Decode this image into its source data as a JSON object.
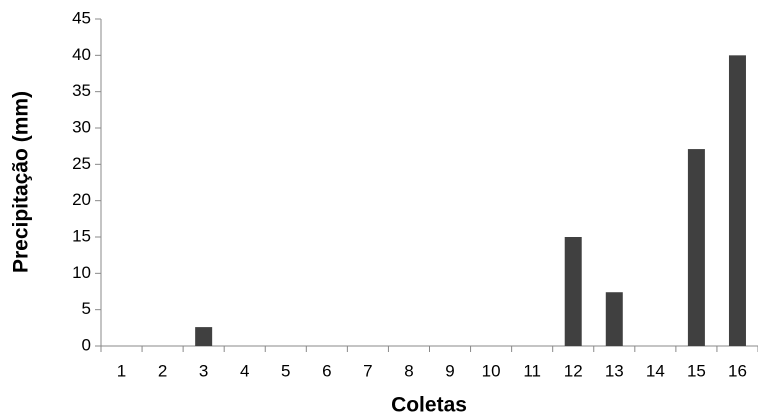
{
  "chart_data": {
    "type": "bar",
    "x_label": "Coletas",
    "y_label": "Precipitação (mm)",
    "categories": [
      "1",
      "2",
      "3",
      "4",
      "5",
      "6",
      "7",
      "8",
      "9",
      "10",
      "11",
      "12",
      "13",
      "14",
      "15",
      "16"
    ],
    "values": [
      0,
      0,
      2.6,
      0,
      0,
      0,
      0,
      0,
      0,
      0,
      0,
      15,
      7.4,
      0,
      27.1,
      40
    ],
    "color": "#404040",
    "ylim": [
      0,
      45
    ],
    "yticks": [
      0,
      5,
      10,
      15,
      20,
      25,
      30,
      35,
      40,
      45
    ],
    "grid": false
  }
}
